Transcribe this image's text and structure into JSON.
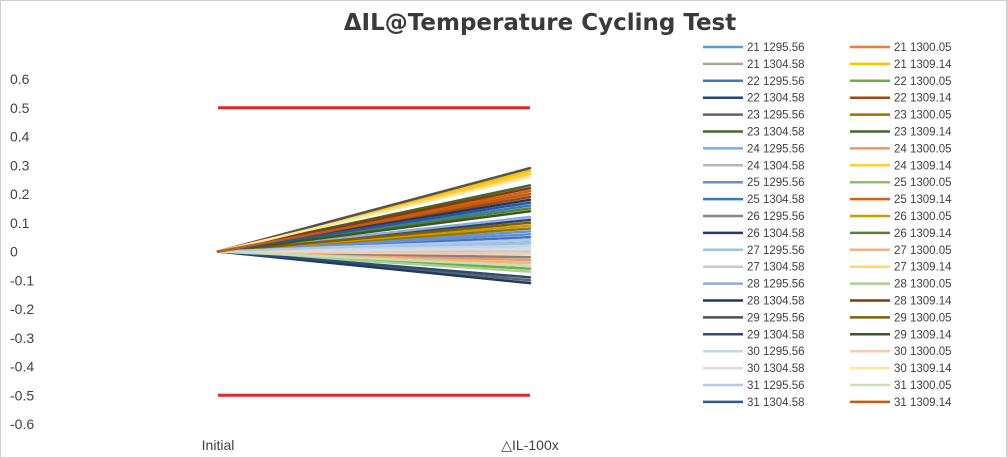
{
  "chart_data": {
    "type": "line",
    "title": "ΔIL@Temperature Cycling Test",
    "categories": [
      "Initial",
      "△IL-100x"
    ],
    "ylim": [
      -0.6,
      0.6
    ],
    "yticks": [
      "0.6",
      "0.5",
      "0.4",
      "0.3",
      "0.2",
      "0.1",
      "0",
      "-0.1",
      "-0.2",
      "-0.3",
      "-0.4",
      "-0.5",
      "-0.6"
    ],
    "limit_lines": [
      0.5,
      -0.5
    ],
    "limit_color": "#e8262a",
    "grid": false,
    "legend_position": "right",
    "series": [
      {
        "name": "21 1295.56",
        "color": "#5b9bd5",
        "values": [
          0,
          0.07
        ]
      },
      {
        "name": "21 1300.05",
        "color": "#ed7d31",
        "values": [
          0,
          0.2
        ]
      },
      {
        "name": "21 1304.58",
        "color": "#a5a5a5",
        "values": [
          0,
          0.02
        ]
      },
      {
        "name": "21 1309.14",
        "color": "#ffc000",
        "values": [
          0,
          0.28
        ]
      },
      {
        "name": "22 1295.56",
        "color": "#4472c4",
        "values": [
          0,
          0.05
        ]
      },
      {
        "name": "22 1300.05",
        "color": "#70ad47",
        "values": [
          0,
          -0.06
        ]
      },
      {
        "name": "22 1304.58",
        "color": "#264478",
        "values": [
          0,
          0.11
        ]
      },
      {
        "name": "22 1309.14",
        "color": "#9e480e",
        "values": [
          0,
          0.19
        ]
      },
      {
        "name": "23 1295.56",
        "color": "#636363",
        "values": [
          0,
          -0.1
        ]
      },
      {
        "name": "23 1300.05",
        "color": "#997300",
        "values": [
          0,
          0.08
        ]
      },
      {
        "name": "23 1304.58",
        "color": "#43682b",
        "values": [
          0,
          0.03
        ]
      },
      {
        "name": "23 1309.14",
        "color": "#43682b",
        "values": [
          0,
          0.23
        ]
      },
      {
        "name": "24 1295.56",
        "color": "#7cafdd",
        "values": [
          0,
          0.04
        ]
      },
      {
        "name": "24 1300.05",
        "color": "#f1975a",
        "values": [
          0,
          -0.03
        ]
      },
      {
        "name": "24 1304.58",
        "color": "#b7b7b7",
        "values": [
          0,
          0.01
        ]
      },
      {
        "name": "24 1309.14",
        "color": "#ffcd33",
        "values": [
          0,
          0.27
        ]
      },
      {
        "name": "25 1295.56",
        "color": "#698ed0",
        "values": [
          0,
          0.06
        ]
      },
      {
        "name": "25 1300.05",
        "color": "#8cc168",
        "values": [
          0,
          -0.05
        ]
      },
      {
        "name": "25 1304.58",
        "color": "#327dc2",
        "values": [
          0,
          0.16
        ]
      },
      {
        "name": "25 1309.14",
        "color": "#d26012",
        "values": [
          0,
          0.21
        ]
      },
      {
        "name": "26 1295.56",
        "color": "#848484",
        "values": [
          0,
          -0.02
        ]
      },
      {
        "name": "26 1300.05",
        "color": "#cc9a00",
        "values": [
          0,
          0.09
        ]
      },
      {
        "name": "26 1304.58",
        "color": "#1f3864",
        "values": [
          0,
          -0.11
        ]
      },
      {
        "name": "26 1309.14",
        "color": "#548235",
        "values": [
          0,
          0.15
        ]
      },
      {
        "name": "27 1295.56",
        "color": "#9dc3e6",
        "values": [
          0,
          0.03
        ]
      },
      {
        "name": "27 1300.05",
        "color": "#f4b183",
        "values": [
          0,
          -0.04
        ]
      },
      {
        "name": "27 1304.58",
        "color": "#c9c9c9",
        "values": [
          0,
          0.0
        ]
      },
      {
        "name": "27 1309.14",
        "color": "#ffd966",
        "values": [
          0,
          0.29
        ]
      },
      {
        "name": "28 1295.56",
        "color": "#8faadc",
        "values": [
          0,
          0.12
        ]
      },
      {
        "name": "28 1300.05",
        "color": "#a9d18e",
        "values": [
          0,
          -0.07
        ]
      },
      {
        "name": "28 1304.58",
        "color": "#203864",
        "values": [
          0,
          0.18
        ]
      },
      {
        "name": "28 1309.14",
        "color": "#843c0c",
        "values": [
          0,
          0.22
        ]
      },
      {
        "name": "29 1295.56",
        "color": "#525252",
        "values": [
          0,
          0.29
        ]
      },
      {
        "name": "29 1300.05",
        "color": "#7f6000",
        "values": [
          0,
          0.1
        ]
      },
      {
        "name": "29 1304.58",
        "color": "#2e4a7a",
        "values": [
          0,
          -0.09
        ]
      },
      {
        "name": "29 1309.14",
        "color": "#385723",
        "values": [
          0,
          0.14
        ]
      },
      {
        "name": "30 1295.56",
        "color": "#bdd7ee",
        "values": [
          0,
          0.02
        ]
      },
      {
        "name": "30 1300.05",
        "color": "#f8cbad",
        "values": [
          0,
          -0.01
        ]
      },
      {
        "name": "30 1304.58",
        "color": "#dbdbdb",
        "values": [
          0,
          0.01
        ]
      },
      {
        "name": "30 1309.14",
        "color": "#ffe699",
        "values": [
          0,
          0.26
        ]
      },
      {
        "name": "31 1295.56",
        "color": "#b4c7e7",
        "values": [
          0,
          0.04
        ]
      },
      {
        "name": "31 1300.05",
        "color": "#c5e0b4",
        "values": [
          0,
          -0.05
        ]
      },
      {
        "name": "31 1304.58",
        "color": "#2f5597",
        "values": [
          0,
          0.17
        ]
      },
      {
        "name": "31 1309.14",
        "color": "#c55a11",
        "values": [
          0,
          0.2
        ]
      }
    ]
  }
}
